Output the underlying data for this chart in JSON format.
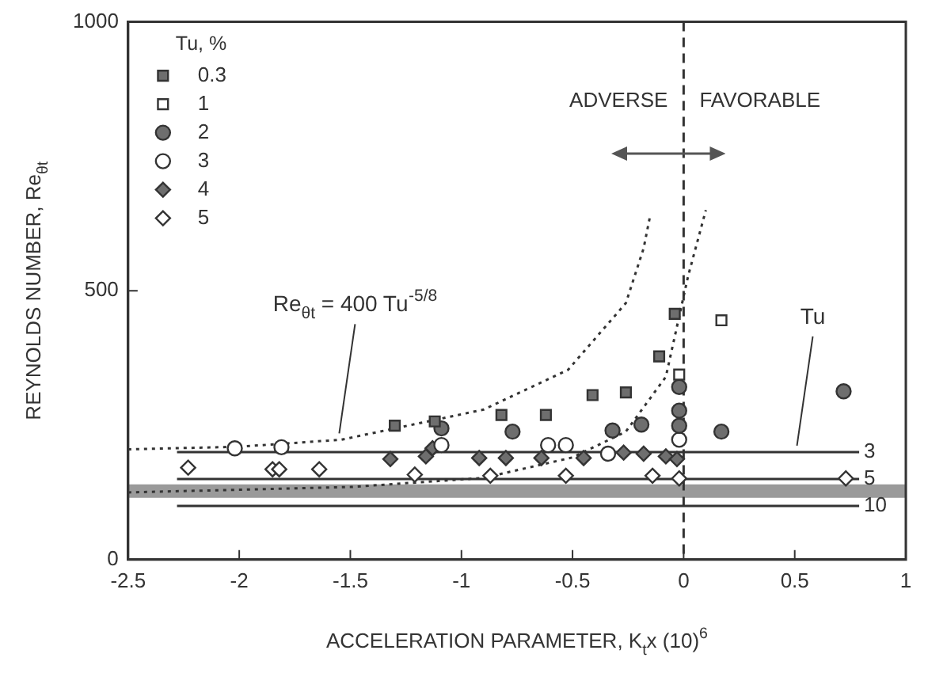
{
  "chart_data": {
    "type": "scatter",
    "xlabel": "ACCELERATION PARAMETER, K$_{t}$x (10)$^{6}$",
    "ylabel": "REYNOLDS NUMBER, Re$_{θt}$",
    "legend_title": "Tu, %",
    "legend": "top left",
    "grid": false,
    "xlim": [
      -2.5,
      1
    ],
    "xticks": [
      -2.5,
      -2,
      -1.5,
      -1,
      -0.5,
      0,
      0.5,
      1
    ],
    "ylim": [
      0,
      1000
    ],
    "yticks": [
      0,
      500,
      1000
    ],
    "series": [
      {
        "name": "0.3",
        "marker": "square",
        "color": "#6e6e6e",
        "x": [
          -1.3,
          -1.12,
          -0.82,
          -0.62,
          -0.41,
          -0.26,
          -0.11,
          -0.04
        ],
        "values": [
          249,
          257,
          269,
          269,
          306,
          311,
          378,
          457
        ]
      },
      {
        "name": "1",
        "marker": "square",
        "color": "#ffffff",
        "x": [
          0.17,
          -0.02
        ],
        "values": [
          445,
          344
        ]
      },
      {
        "name": "2",
        "marker": "circle",
        "color": "#6e6e6e",
        "x": [
          -1.09,
          -0.77,
          -0.32,
          -0.19,
          -0.02,
          -0.02,
          -0.02,
          0.17,
          0.72
        ],
        "values": [
          244,
          238,
          240,
          251,
          321,
          277,
          249,
          238,
          313
        ]
      },
      {
        "name": "3",
        "marker": "circle",
        "color": "#ffffff",
        "x": [
          -2.02,
          -1.81,
          -1.09,
          -0.61,
          -0.53,
          -0.34,
          -0.02
        ],
        "values": [
          207,
          209,
          213,
          213,
          213,
          197,
          223
        ]
      },
      {
        "name": "4",
        "marker": "diamond",
        "color": "#6e6e6e",
        "x": [
          -1.32,
          -1.16,
          -1.13,
          -0.92,
          -0.8,
          -0.64,
          -0.45,
          -0.27,
          -0.18,
          -0.08,
          -0.03
        ],
        "values": [
          187,
          192,
          207,
          189,
          189,
          189,
          189,
          199,
          197,
          192,
          187
        ]
      },
      {
        "name": "5",
        "marker": "diamond",
        "color": "#ffffff",
        "x": [
          -2.23,
          -1.85,
          -1.82,
          -1.64,
          -1.21,
          -0.87,
          -0.53,
          -0.14,
          -0.02,
          0.73
        ],
        "values": [
          171,
          168,
          168,
          168,
          158,
          156,
          156,
          156,
          151,
          151
        ]
      },
      {
        "type": "line",
        "marker": "none",
        "line_style": "dotted",
        "color": "#333333",
        "x": [
          -2.5,
          -2,
          -1.54,
          -0.9,
          -0.52,
          -0.26,
          -0.18,
          -0.15
        ],
        "values": [
          205,
          210,
          223,
          279,
          353,
          477,
          579,
          641
        ]
      },
      {
        "type": "line",
        "marker": "none",
        "line_style": "dotted",
        "color": "#333333",
        "x": [
          -2.5,
          -1.5,
          -0.9,
          -0.5,
          -0.26,
          -0.08,
          0.02,
          0.1
        ],
        "values": [
          125,
          135,
          152,
          190,
          238,
          340,
          527,
          650
        ]
      },
      {
        "name": "3",
        "type": "line",
        "marker": "none",
        "line_style": "solid",
        "color": "#333333",
        "x": [
          -2.28,
          0.79
        ],
        "values": [
          200,
          200
        ]
      },
      {
        "name": "5",
        "type": "line",
        "marker": "none",
        "line_style": "solid",
        "color": "#333333",
        "x": [
          -2.28,
          0.79
        ],
        "values": [
          150,
          150
        ]
      },
      {
        "name": "10",
        "type": "line",
        "marker": "none",
        "line_style": "solid",
        "color": "#333333",
        "x": [
          -2.28,
          0.79
        ],
        "values": [
          100,
          100
        ]
      }
    ],
    "bands": [
      {
        "axis": "y",
        "from": 115,
        "to": 140,
        "color": "#9a9a9a"
      }
    ],
    "ref_lines": [
      {
        "axis": "x",
        "value": 0,
        "line_style": "dashed",
        "color": "#333333"
      }
    ],
    "annotations": [
      "ADVERSE",
      "FAVORABLE",
      {
        "text": "Re$_{θt}$ = 400 Tu$^{-5/8}$",
        "x": -1.55,
        "y": 223
      },
      {
        "text": "Tu",
        "x": 0.51,
        "y": 200
      }
    ]
  }
}
